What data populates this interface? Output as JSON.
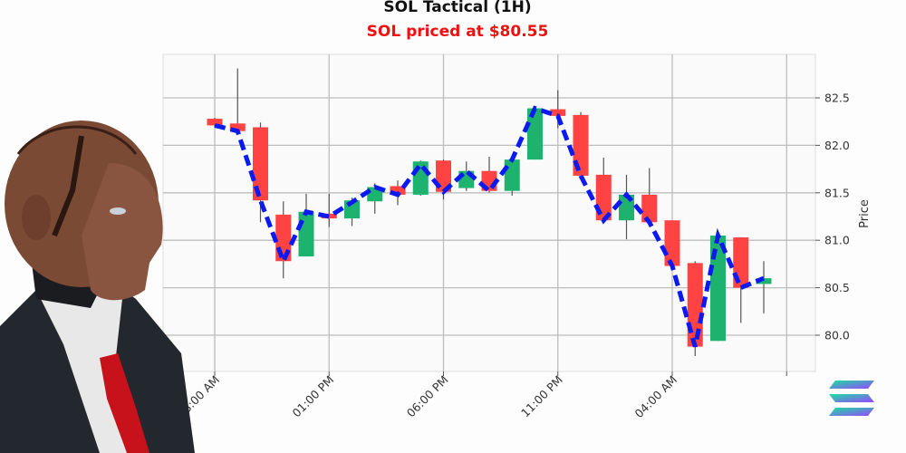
{
  "header": {
    "title": "SOL Tactical (1H)",
    "subtitle": "SOL priced at $80.55"
  },
  "colors": {
    "up": "#1db36e",
    "down": "#ff4242",
    "line": "#0a1af0",
    "subtitle": "#f01010",
    "grid": "#bdbdbd"
  },
  "icons": {
    "logo": "solana-logo-icon",
    "avatar": "robot-businessman-illustration"
  },
  "chart_data": {
    "type": "candlestick",
    "title": "SOL Tactical (1H)",
    "subtitle": "SOL priced at $80.55",
    "xlabel": "",
    "ylabel": "Price",
    "ylim": [
      79.6,
      82.9
    ],
    "yticks": [
      80.0,
      80.5,
      81.0,
      81.5,
      82.0,
      82.5
    ],
    "ytick_labels": [
      "80.0",
      "80.5",
      "81.0",
      "81.5",
      "82.0",
      "82.5"
    ],
    "xtick_labels": [
      "08:00 AM",
      "01:00 PM",
      "06:00 PM",
      "11:00 PM",
      "04:00 AM",
      ""
    ],
    "xtick_index": [
      0,
      5,
      10,
      15,
      20,
      25
    ],
    "grid": true,
    "y_axis_position": "right",
    "candles": [
      {
        "o": 82.28,
        "h": 82.29,
        "l": 82.2,
        "c": 82.21
      },
      {
        "o": 82.23,
        "h": 82.81,
        "l": 82.15,
        "c": 82.15
      },
      {
        "o": 82.19,
        "h": 82.24,
        "l": 81.19,
        "c": 81.42
      },
      {
        "o": 81.27,
        "h": 81.41,
        "l": 80.6,
        "c": 80.78
      },
      {
        "o": 80.83,
        "h": 81.49,
        "l": 80.83,
        "c": 81.3
      },
      {
        "o": 81.28,
        "h": 81.49,
        "l": 81.14,
        "c": 81.23
      },
      {
        "o": 81.23,
        "h": 81.45,
        "l": 81.15,
        "c": 81.42
      },
      {
        "o": 81.41,
        "h": 81.6,
        "l": 81.28,
        "c": 81.56
      },
      {
        "o": 81.57,
        "h": 81.63,
        "l": 81.37,
        "c": 81.48
      },
      {
        "o": 81.48,
        "h": 81.84,
        "l": 81.47,
        "c": 81.83
      },
      {
        "o": 81.84,
        "h": 81.85,
        "l": 81.43,
        "c": 81.51
      },
      {
        "o": 81.55,
        "h": 81.83,
        "l": 81.52,
        "c": 81.73
      },
      {
        "o": 81.73,
        "h": 81.88,
        "l": 81.5,
        "c": 81.52
      },
      {
        "o": 81.52,
        "h": 81.86,
        "l": 81.47,
        "c": 81.85
      },
      {
        "o": 81.85,
        "h": 82.4,
        "l": 81.85,
        "c": 82.39
      },
      {
        "o": 82.38,
        "h": 82.58,
        "l": 82.18,
        "c": 82.31
      },
      {
        "o": 82.32,
        "h": 82.35,
        "l": 81.68,
        "c": 81.68
      },
      {
        "o": 81.69,
        "h": 81.87,
        "l": 81.21,
        "c": 81.21
      },
      {
        "o": 81.21,
        "h": 81.69,
        "l": 81.01,
        "c": 81.48
      },
      {
        "o": 81.48,
        "h": 81.76,
        "l": 81.19,
        "c": 81.19
      },
      {
        "o": 81.21,
        "h": 81.21,
        "l": 80.73,
        "c": 80.73
      },
      {
        "o": 80.76,
        "h": 80.78,
        "l": 79.78,
        "c": 79.88
      },
      {
        "o": 79.94,
        "h": 81.09,
        "l": 79.94,
        "c": 81.05
      },
      {
        "o": 81.03,
        "h": 81.03,
        "l": 80.13,
        "c": 80.5
      },
      {
        "o": 80.54,
        "h": 80.78,
        "l": 80.23,
        "c": 80.6
      }
    ],
    "series": [
      {
        "name": "Close (dashed)",
        "values": [
          82.21,
          82.15,
          81.42,
          80.78,
          81.3,
          81.25,
          81.4,
          81.56,
          81.48,
          81.8,
          81.51,
          81.73,
          81.52,
          81.85,
          82.39,
          82.31,
          81.68,
          81.21,
          81.48,
          81.19,
          80.73,
          79.88,
          81.05,
          80.5,
          80.6
        ]
      }
    ]
  }
}
